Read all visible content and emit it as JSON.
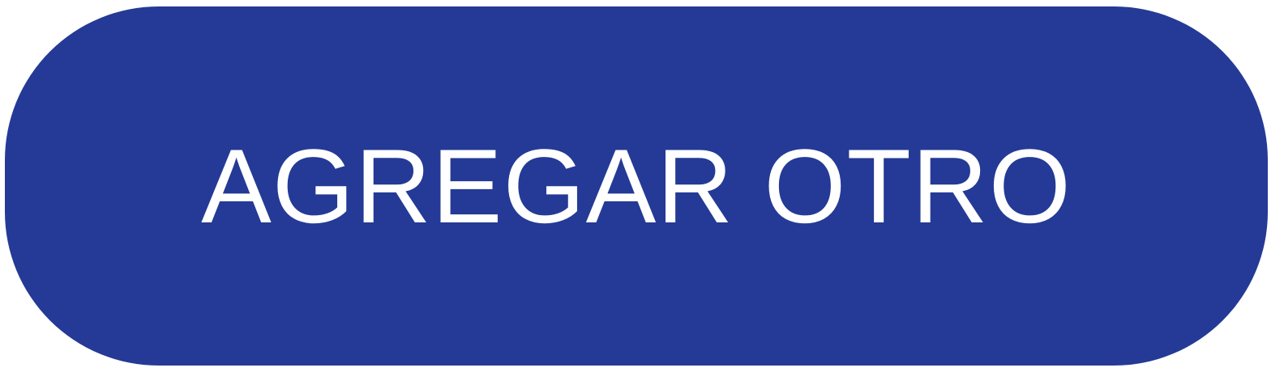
{
  "button": {
    "label": "AGREGAR OTRO"
  },
  "colors": {
    "button_background": "#243a96",
    "button_text": "#ffffff",
    "page_background": "#ffffff"
  }
}
